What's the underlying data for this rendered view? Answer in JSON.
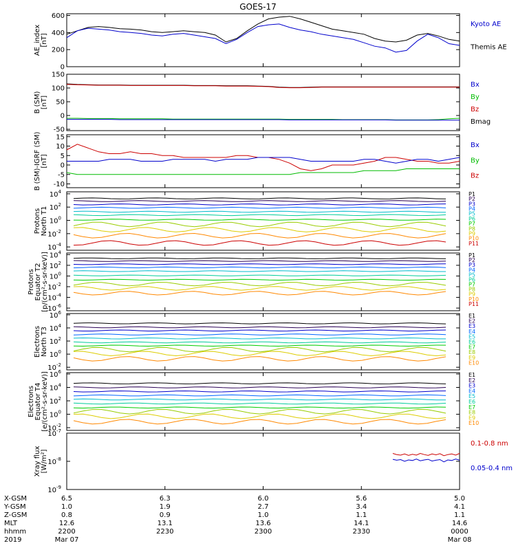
{
  "chart_data": {
    "title": "GOES-17",
    "x_range_labels": [
      "2200",
      "2330"
    ],
    "x_labels": {
      "rows": [
        {
          "label": "X-GSM",
          "values": [
            "6.5",
            "6.3",
            "6.0",
            "5.6",
            "5.0"
          ]
        },
        {
          "label": "Y-GSM",
          "values": [
            "1.0",
            "1.9",
            "2.7",
            "3.4",
            "4.1"
          ]
        },
        {
          "label": "Z-GSM",
          "values": [
            "0.8",
            "0.9",
            "1.0",
            "1.1",
            "1.1"
          ]
        },
        {
          "label": "MLT",
          "values": [
            "12.6",
            "13.1",
            "13.6",
            "14.1",
            "14.6"
          ]
        },
        {
          "label": "hhmm",
          "values": [
            "2200",
            "2230",
            "2300",
            "2330",
            "0000"
          ]
        },
        {
          "label": "2019",
          "values": [
            "Mar 07",
            "",
            "",
            "",
            "Mar 08"
          ]
        }
      ]
    },
    "colors": {
      "black": "#000000",
      "blue": "#0000cc",
      "red": "#cc0000",
      "green": "#00bb00",
      "p_palette": [
        "#000000",
        "#2a0055",
        "#0000cc",
        "#0066ff",
        "#00bbcc",
        "#00cc99",
        "#00cc00",
        "#99cc00",
        "#ddcc00",
        "#ff8800",
        "#cc0000"
      ]
    },
    "panels": [
      {
        "id": "ae",
        "type": "line",
        "ylabel": [
          "AE_index",
          "[nT]"
        ],
        "yticks": [
          "0",
          "200",
          "400",
          "600"
        ],
        "ylim": [
          0,
          620
        ],
        "legend": [
          {
            "label": "Kyoto AE",
            "color": "#0000cc"
          },
          {
            "label": "Themis AE",
            "color": "#000000"
          }
        ],
        "series": [
          {
            "name": "Themis AE",
            "color": "#000000",
            "values": [
              380,
              420,
              460,
              470,
              460,
              445,
              440,
              430,
              410,
              400,
              410,
              420,
              410,
              400,
              370,
              290,
              330,
              420,
              500,
              560,
              580,
              590,
              560,
              520,
              480,
              440,
              420,
              400,
              380,
              330,
              300,
              290,
              310,
              370,
              390,
              360,
              320,
              300
            ]
          },
          {
            "name": "Kyoto AE",
            "color": "#0000cc",
            "values": [
              340,
              420,
              450,
              440,
              430,
              410,
              400,
              390,
              370,
              360,
              380,
              390,
              370,
              350,
              330,
              270,
              320,
              400,
              470,
              490,
              500,
              460,
              430,
              410,
              380,
              360,
              340,
              320,
              280,
              240,
              220,
              170,
              190,
              300,
              380,
              340,
              270,
              250
            ]
          }
        ]
      },
      {
        "id": "bsm",
        "type": "line",
        "ylabel": [
          "B (SM)",
          "[nT]"
        ],
        "yticks": [
          "-50",
          "0",
          "50",
          "100",
          "150"
        ],
        "ylim": [
          -55,
          150
        ],
        "legend": [
          {
            "label": "Bx",
            "color": "#0000cc"
          },
          {
            "label": "By",
            "color": "#00bb00"
          },
          {
            "label": "Bz",
            "color": "#cc0000"
          },
          {
            "label": "Bmag",
            "color": "#000000"
          }
        ],
        "series": [
          {
            "name": "Bmag",
            "color": "#000000",
            "values": [
              115,
              113,
              112,
              111,
              111,
              111,
              110,
              110,
              110,
              110,
              110,
              110,
              109,
              109,
              109,
              108,
              108,
              108,
              107,
              106,
              103,
              102,
              102,
              103,
              104,
              104,
              104,
              104,
              104,
              104,
              104,
              104,
              104,
              104,
              104,
              104,
              104,
              104
            ]
          },
          {
            "name": "Bz",
            "color": "#cc0000",
            "values": [
              113,
              112,
              111,
              110,
              110,
              110,
              109,
              109,
              109,
              109,
              109,
              109,
              108,
              108,
              108,
              107,
              107,
              107,
              106,
              105,
              102,
              101,
              101,
              102,
              103,
              103,
              103,
              103,
              103,
              103,
              103,
              103,
              103,
              103,
              103,
              103,
              103,
              103
            ]
          },
          {
            "name": "By",
            "color": "#00bb00",
            "values": [
              -10,
              -10,
              -11,
              -11,
              -11,
              -12,
              -12,
              -12,
              -12,
              -12,
              -13,
              -13,
              -13,
              -13,
              -13,
              -13,
              -13,
              -13,
              -13,
              -13,
              -13,
              -14,
              -14,
              -14,
              -14,
              -14,
              -15,
              -15,
              -15,
              -15,
              -15,
              -16,
              -16,
              -16,
              -16,
              -15,
              -12,
              -10
            ]
          },
          {
            "name": "Bx",
            "color": "#0000cc",
            "values": [
              -14,
              -14,
              -14,
              -14,
              -14,
              -15,
              -15,
              -15,
              -15,
              -15,
              -15,
              -15,
              -15,
              -15,
              -15,
              -15,
              -15,
              -15,
              -15,
              -15,
              -15,
              -16,
              -16,
              -16,
              -16,
              -16,
              -16,
              -16,
              -16,
              -16,
              -16,
              -17,
              -17,
              -17,
              -17,
              -17,
              -17,
              -17
            ]
          }
        ]
      },
      {
        "id": "bigrf",
        "type": "line",
        "ylabel": [
          "B (SM)-IGRF (SM)",
          "[nT]"
        ],
        "yticks": [
          "-10",
          "-5",
          "0",
          "5",
          "10",
          "15"
        ],
        "ylim": [
          -12,
          16
        ],
        "legend": [
          {
            "label": "Bx",
            "color": "#0000cc"
          },
          {
            "label": "By",
            "color": "#00bb00"
          },
          {
            "label": "Bz",
            "color": "#cc0000"
          }
        ],
        "series": [
          {
            "name": "Bz",
            "color": "#cc0000",
            "values": [
              8,
              11,
              9,
              7,
              6,
              6,
              7,
              6,
              6,
              5,
              5,
              4,
              4,
              4,
              4,
              4,
              5,
              5,
              4,
              4,
              3,
              1,
              -2,
              -3,
              -2,
              0,
              0,
              0,
              1,
              2,
              4,
              4,
              3,
              2,
              2,
              1,
              1,
              2
            ]
          },
          {
            "name": "Bx",
            "color": "#0000cc",
            "values": [
              2,
              2,
              2,
              2,
              3,
              3,
              3,
              2,
              2,
              2,
              3,
              3,
              3,
              3,
              2,
              3,
              3,
              3,
              4,
              4,
              4,
              4,
              3,
              2,
              2,
              2,
              2,
              2,
              3,
              3,
              2,
              1,
              2,
              3,
              3,
              2,
              3,
              4
            ]
          },
          {
            "name": "By",
            "color": "#00bb00",
            "values": [
              -4,
              -5,
              -5,
              -5,
              -5,
              -5,
              -5,
              -5,
              -5,
              -5,
              -5,
              -5,
              -5,
              -5,
              -5,
              -5,
              -5,
              -5,
              -5,
              -5,
              -5,
              -5,
              -4,
              -4,
              -4,
              -4,
              -4,
              -4,
              -3,
              -3,
              -3,
              -3,
              -2,
              -2,
              -2,
              -2,
              -2,
              -2
            ]
          }
        ]
      },
      {
        "id": "pn",
        "type": "log-lines",
        "ylabel": [
          "Protons",
          "North T1"
        ],
        "yticks_exp": [
          4,
          2,
          0,
          -2,
          -4
        ],
        "log_range": [
          -4.5,
          4.3
        ],
        "legend": [
          "P1",
          "P2",
          "P3",
          "P4",
          "P5",
          "P6",
          "P7",
          "P8",
          "P9",
          "P10",
          "P11"
        ],
        "levels": [
          3.3,
          2.9,
          2.4,
          1.9,
          1.3,
          0.8,
          0.1,
          -0.6,
          -1.4,
          -2.3,
          -3.4
        ]
      },
      {
        "id": "pe",
        "type": "log-lines",
        "ylabel": [
          "Protons",
          "Equator T2",
          "[p/(cm²-s-sr-keV)]"
        ],
        "yticks_exp": [
          4,
          2,
          0,
          -2,
          -4,
          -6
        ],
        "log_range": [
          -6.5,
          4.3
        ],
        "legend": [
          "P1",
          "P2",
          "P3",
          "P4",
          "P5",
          "P6",
          "P7",
          "P8",
          "P9",
          "P10",
          "P11"
        ],
        "levels": [
          3.3,
          2.8,
          2.2,
          1.6,
          0.9,
          0.1,
          -0.7,
          -1.5,
          -2.3,
          -3.2,
          -99
        ]
      },
      {
        "id": "en",
        "type": "log-lines",
        "ylabel": [
          "Electrons",
          "North T3"
        ],
        "yticks_exp": [
          6,
          4,
          2,
          0,
          -2
        ],
        "log_range": [
          -2.4,
          6.2
        ],
        "legend": [
          "E1",
          "E2",
          "E3",
          "E4",
          "E5",
          "E6",
          "E7",
          "E8",
          "E9",
          "E10"
        ],
        "levels": [
          4.7,
          4.1,
          3.6,
          3.0,
          2.4,
          1.8,
          1.3,
          0.7,
          0.1,
          -0.7
        ]
      },
      {
        "id": "ee",
        "type": "log-lines",
        "ylabel": [
          "Electrons",
          "Equator T4",
          "[e/(cm²-s-sr-keV)]"
        ],
        "yticks_exp": [
          6,
          4,
          2,
          0,
          -2
        ],
        "log_range": [
          -2.4,
          6.2
        ],
        "legend": [
          "E1",
          "E2",
          "E3",
          "E4",
          "E5",
          "E6",
          "E7",
          "E8",
          "E9",
          "E10"
        ],
        "levels": [
          4.6,
          4.0,
          3.4,
          2.8,
          2.2,
          1.6,
          1.0,
          0.4,
          -0.3,
          -1.1
        ]
      },
      {
        "id": "xray",
        "type": "line",
        "ylabel": [
          "Xray flux",
          "[W/m²]"
        ],
        "yticks_exp": [
          -7,
          -8,
          -9
        ],
        "log_range": [
          -9,
          -7
        ],
        "legend": [
          {
            "label": "0.1-0.8 nm",
            "color": "#cc0000"
          },
          {
            "label": "0.05-0.4 nm",
            "color": "#0000cc"
          }
        ],
        "series": [
          {
            "name": "0.1-0.8 nm",
            "color": "#cc0000",
            "x_start_frac": 0.83,
            "values": [
              -7.72,
              -7.76,
              -7.78,
              -7.74,
              -7.79,
              -7.75,
              -7.78,
              -7.72,
              -7.76,
              -7.79,
              -7.74,
              -7.77,
              -7.73,
              -7.8,
              -7.76,
              -7.74,
              -7.78,
              -7.72
            ]
          },
          {
            "name": "0.05-0.4 nm",
            "color": "#0000cc",
            "x_start_frac": 0.83,
            "values": [
              -7.93,
              -7.96,
              -7.94,
              -8.0,
              -7.95,
              -7.97,
              -7.92,
              -7.98,
              -7.95,
              -7.93,
              -7.99,
              -7.96,
              -7.94,
              -8.02,
              -7.95,
              -7.97,
              -7.92,
              -7.96
            ]
          }
        ]
      }
    ]
  }
}
